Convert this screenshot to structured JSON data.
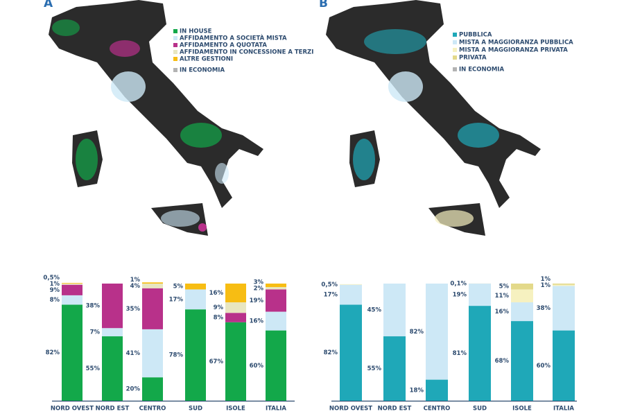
{
  "chart_data": [
    {
      "type": "stacked_bar",
      "panel": "A",
      "categories": [
        "NORD OVEST",
        "NORD EST",
        "CENTRO",
        "SUD",
        "ISOLE",
        "ITALIA"
      ],
      "ylim": [
        0,
        100
      ],
      "series": [
        {
          "name": "IN HOUSE",
          "color": "#13a84a",
          "values": [
            82,
            55,
            20,
            78,
            67,
            60
          ],
          "value_labels": [
            "82%",
            "55%",
            "20%",
            "78%",
            "67%",
            "60%"
          ]
        },
        {
          "name": "AFFIDAMENTO A SOCIETÀ MISTA",
          "color": "#cde8f6",
          "values": [
            8,
            7,
            41,
            17,
            0,
            16
          ],
          "value_labels": [
            "8%",
            "7%",
            "41%",
            "17%",
            null,
            "16%"
          ]
        },
        {
          "name": "AFFIDAMENTO A QUOTATA",
          "color": "#b8318a",
          "values": [
            9,
            38,
            35,
            0,
            8,
            19
          ],
          "value_labels": [
            "9%",
            "38%",
            "35%",
            null,
            "8%",
            "19%"
          ]
        },
        {
          "name": "AFFIDAMENTO IN CONCESSIONE A TERZI",
          "color": "#e8e6c0",
          "values": [
            1,
            0,
            4,
            0,
            9,
            2
          ],
          "value_labels": [
            "1%",
            null,
            "4%",
            null,
            "9%",
            "2%"
          ]
        },
        {
          "name": "ALTRE GESTIONI",
          "color": "#f7bd13",
          "values": [
            0.5,
            0,
            1,
            5,
            16,
            3
          ],
          "value_labels": [
            "0,5%",
            null,
            "1%",
            "5%",
            "16%",
            "3%"
          ]
        },
        {
          "name": "IN ECONOMIA",
          "color": "#b3b3b3",
          "values": [
            null,
            null,
            null,
            null,
            null,
            null
          ]
        }
      ]
    },
    {
      "type": "stacked_bar",
      "panel": "B",
      "categories": [
        "NORD OVEST",
        "NORD EST",
        "CENTRO",
        "SUD",
        "ISOLE",
        "ITALIA"
      ],
      "ylim": [
        0,
        100
      ],
      "series": [
        {
          "name": "PUBBLICA",
          "color": "#1fa8b8",
          "values": [
            82,
            55,
            18,
            81,
            68,
            60
          ],
          "value_labels": [
            "82%",
            "55%",
            "18%",
            "81%",
            "68%",
            "60%"
          ]
        },
        {
          "name": "MISTA A MAGGIORANZA PUBBLICA",
          "color": "#cde8f6",
          "values": [
            17,
            45,
            82,
            19,
            16,
            38
          ],
          "value_labels": [
            "17%",
            "45%",
            "82%",
            "19%",
            "16%",
            "38%"
          ]
        },
        {
          "name": "MISTA A MAGGIORANZA PRIVATA",
          "color": "#f6f1c0",
          "values": [
            0.5,
            0,
            0,
            0.1,
            11,
            1
          ],
          "value_labels": [
            "0,5%",
            null,
            null,
            "0,1%",
            "11%",
            "1%"
          ]
        },
        {
          "name": "PRIVATA",
          "color": "#e3d98a",
          "values": [
            0,
            0,
            0,
            0,
            5,
            1
          ],
          "value_labels": [
            null,
            null,
            null,
            null,
            "5%",
            "1%"
          ]
        },
        {
          "name": "IN ECONOMIA",
          "color": "#b3b3b3",
          "values": [
            null,
            null,
            null,
            null,
            null,
            null
          ]
        }
      ]
    }
  ]
}
